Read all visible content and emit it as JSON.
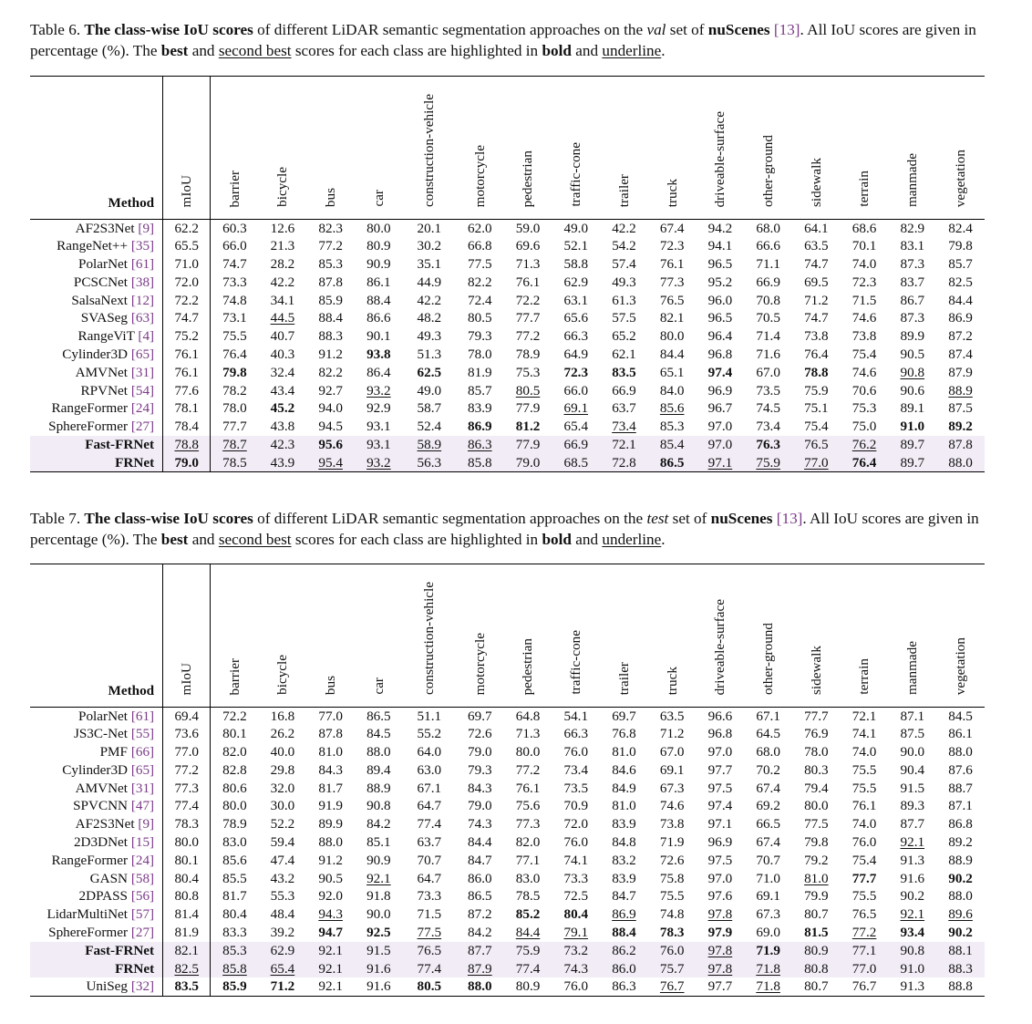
{
  "table6": {
    "caption": {
      "label": "Table 6.",
      "bold": "The class-wise IoU scores",
      "pre_set": "of different LiDAR semantic segmentation approaches on the",
      "set": "val",
      "mid": "set of",
      "dataset": "nuScenes",
      "ref": "[13]",
      "rest": ". All IoU scores are given in percentage (%). The",
      "best": "best",
      "and1": "and",
      "second": "second best",
      "scores_text": "scores for each class are highlighted in",
      "bold_word": "bold",
      "and2": "and",
      "underline_word": "underline",
      "end": "."
    },
    "header": [
      "Method",
      "mIoU",
      "barrier",
      "bicycle",
      "bus",
      "car",
      "construction-vehicle",
      "motorcycle",
      "pedestrian",
      "traffic-cone",
      "trailer",
      "truck",
      "driveable-surface",
      "other-ground",
      "sidewalk",
      "terrain",
      "manmade",
      "vegetation"
    ],
    "rows": [
      {
        "method": "AF2S3Net",
        "ref": "[9]",
        "values": [
          "62.2",
          "60.3",
          "12.6",
          "82.3",
          "80.0",
          "20.1",
          "62.0",
          "59.0",
          "49.0",
          "42.2",
          "67.4",
          "94.2",
          "68.0",
          "64.1",
          "68.6",
          "82.9",
          "82.4"
        ],
        "bold": [],
        "underline": []
      },
      {
        "method": "RangeNet++",
        "ref": "[35]",
        "values": [
          "65.5",
          "66.0",
          "21.3",
          "77.2",
          "80.9",
          "30.2",
          "66.8",
          "69.6",
          "52.1",
          "54.2",
          "72.3",
          "94.1",
          "66.6",
          "63.5",
          "70.1",
          "83.1",
          "79.8"
        ],
        "bold": [],
        "underline": []
      },
      {
        "method": "PolarNet",
        "ref": "[61]",
        "values": [
          "71.0",
          "74.7",
          "28.2",
          "85.3",
          "90.9",
          "35.1",
          "77.5",
          "71.3",
          "58.8",
          "57.4",
          "76.1",
          "96.5",
          "71.1",
          "74.7",
          "74.0",
          "87.3",
          "85.7"
        ],
        "bold": [],
        "underline": []
      },
      {
        "method": "PCSCNet",
        "ref": "[38]",
        "values": [
          "72.0",
          "73.3",
          "42.2",
          "87.8",
          "86.1",
          "44.9",
          "82.2",
          "76.1",
          "62.9",
          "49.3",
          "77.3",
          "95.2",
          "66.9",
          "69.5",
          "72.3",
          "83.7",
          "82.5"
        ],
        "bold": [],
        "underline": []
      },
      {
        "method": "SalsaNext",
        "ref": "[12]",
        "values": [
          "72.2",
          "74.8",
          "34.1",
          "85.9",
          "88.4",
          "42.2",
          "72.4",
          "72.2",
          "63.1",
          "61.3",
          "76.5",
          "96.0",
          "70.8",
          "71.2",
          "71.5",
          "86.7",
          "84.4"
        ],
        "bold": [],
        "underline": []
      },
      {
        "method": "SVASeg",
        "ref": "[63]",
        "values": [
          "74.7",
          "73.1",
          "44.5",
          "88.4",
          "86.6",
          "48.2",
          "80.5",
          "77.7",
          "65.6",
          "57.5",
          "82.1",
          "96.5",
          "70.5",
          "74.7",
          "74.6",
          "87.3",
          "86.9"
        ],
        "bold": [],
        "underline": [
          2
        ]
      },
      {
        "method": "RangeViT",
        "ref": "[4]",
        "values": [
          "75.2",
          "75.5",
          "40.7",
          "88.3",
          "90.1",
          "49.3",
          "79.3",
          "77.2",
          "66.3",
          "65.2",
          "80.0",
          "96.4",
          "71.4",
          "73.8",
          "73.8",
          "89.9",
          "87.2"
        ],
        "bold": [],
        "underline": []
      },
      {
        "method": "Cylinder3D",
        "ref": "[65]",
        "values": [
          "76.1",
          "76.4",
          "40.3",
          "91.2",
          "93.8",
          "51.3",
          "78.0",
          "78.9",
          "64.9",
          "62.1",
          "84.4",
          "96.8",
          "71.6",
          "76.4",
          "75.4",
          "90.5",
          "87.4"
        ],
        "bold": [
          4
        ],
        "underline": []
      },
      {
        "method": "AMVNet",
        "ref": "[31]",
        "values": [
          "76.1",
          "79.8",
          "32.4",
          "82.2",
          "86.4",
          "62.5",
          "81.9",
          "75.3",
          "72.3",
          "83.5",
          "65.1",
          "97.4",
          "67.0",
          "78.8",
          "74.6",
          "90.8",
          "87.9"
        ],
        "bold": [
          1,
          5,
          8,
          9,
          11,
          13
        ],
        "underline": [
          15
        ]
      },
      {
        "method": "RPVNet",
        "ref": "[54]",
        "values": [
          "77.6",
          "78.2",
          "43.4",
          "92.7",
          "93.2",
          "49.0",
          "85.7",
          "80.5",
          "66.0",
          "66.9",
          "84.0",
          "96.9",
          "73.5",
          "75.9",
          "70.6",
          "90.6",
          "88.9"
        ],
        "bold": [],
        "underline": [
          4,
          7,
          16
        ]
      },
      {
        "method": "RangeFormer",
        "ref": "[24]",
        "values": [
          "78.1",
          "78.0",
          "45.2",
          "94.0",
          "92.9",
          "58.7",
          "83.9",
          "77.9",
          "69.1",
          "63.7",
          "85.6",
          "96.7",
          "74.5",
          "75.1",
          "75.3",
          "89.1",
          "87.5"
        ],
        "bold": [
          2
        ],
        "underline": [
          8,
          10
        ]
      },
      {
        "method": "SphereFormer",
        "ref": "[27]",
        "values": [
          "78.4",
          "77.7",
          "43.8",
          "94.5",
          "93.1",
          "52.4",
          "86.9",
          "81.2",
          "65.4",
          "73.4",
          "85.3",
          "97.0",
          "73.4",
          "75.4",
          "75.0",
          "91.0",
          "89.2"
        ],
        "bold": [
          6,
          7,
          15,
          16
        ],
        "underline": [
          9
        ]
      },
      {
        "method": "Fast-FRNet",
        "ref": "",
        "ours": true,
        "values": [
          "78.8",
          "78.7",
          "42.3",
          "95.6",
          "93.1",
          "58.9",
          "86.3",
          "77.9",
          "66.9",
          "72.1",
          "85.4",
          "97.0",
          "76.3",
          "76.5",
          "76.2",
          "89.7",
          "87.8"
        ],
        "bold": [
          3,
          12
        ],
        "underline": [
          0,
          1,
          5,
          6,
          14
        ]
      },
      {
        "method": "FRNet",
        "ref": "",
        "ours": true,
        "values": [
          "79.0",
          "78.5",
          "43.9",
          "95.4",
          "93.2",
          "56.3",
          "85.8",
          "79.0",
          "68.5",
          "72.8",
          "86.5",
          "97.1",
          "75.9",
          "77.0",
          "76.4",
          "89.7",
          "88.0"
        ],
        "bold": [
          0,
          10,
          14
        ],
        "underline": [
          3,
          4,
          11,
          12,
          13
        ]
      }
    ]
  },
  "table7": {
    "caption": {
      "label": "Table 7.",
      "bold": "The class-wise IoU scores",
      "pre_set": "of different LiDAR semantic segmentation approaches on the",
      "set": "test",
      "mid": "set of",
      "dataset": "nuScenes",
      "ref": "[13]",
      "rest": ". All IoU scores are given in percentage (%). The",
      "best": "best",
      "and1": "and",
      "second": "second best",
      "scores_text": "scores for each class are highlighted in",
      "bold_word": "bold",
      "and2": "and",
      "underline_word": "underline",
      "end": "."
    },
    "header": [
      "Method",
      "mIoU",
      "barrier",
      "bicycle",
      "bus",
      "car",
      "construction-vehicle",
      "motorcycle",
      "pedestrian",
      "traffic-cone",
      "trailer",
      "truck",
      "driveable-surface",
      "other-ground",
      "sidewalk",
      "terrain",
      "manmade",
      "vegetation"
    ],
    "rows": [
      {
        "method": "PolarNet",
        "ref": "[61]",
        "values": [
          "69.4",
          "72.2",
          "16.8",
          "77.0",
          "86.5",
          "51.1",
          "69.7",
          "64.8",
          "54.1",
          "69.7",
          "63.5",
          "96.6",
          "67.1",
          "77.7",
          "72.1",
          "87.1",
          "84.5"
        ],
        "bold": [],
        "underline": []
      },
      {
        "method": "JS3C-Net",
        "ref": "[55]",
        "values": [
          "73.6",
          "80.1",
          "26.2",
          "87.8",
          "84.5",
          "55.2",
          "72.6",
          "71.3",
          "66.3",
          "76.8",
          "71.2",
          "96.8",
          "64.5",
          "76.9",
          "74.1",
          "87.5",
          "86.1"
        ],
        "bold": [],
        "underline": []
      },
      {
        "method": "PMF",
        "ref": "[66]",
        "values": [
          "77.0",
          "82.0",
          "40.0",
          "81.0",
          "88.0",
          "64.0",
          "79.0",
          "80.0",
          "76.0",
          "81.0",
          "67.0",
          "97.0",
          "68.0",
          "78.0",
          "74.0",
          "90.0",
          "88.0"
        ],
        "bold": [],
        "underline": []
      },
      {
        "method": "Cylinder3D",
        "ref": "[65]",
        "values": [
          "77.2",
          "82.8",
          "29.8",
          "84.3",
          "89.4",
          "63.0",
          "79.3",
          "77.2",
          "73.4",
          "84.6",
          "69.1",
          "97.7",
          "70.2",
          "80.3",
          "75.5",
          "90.4",
          "87.6"
        ],
        "bold": [],
        "underline": []
      },
      {
        "method": "AMVNet",
        "ref": "[31]",
        "values": [
          "77.3",
          "80.6",
          "32.0",
          "81.7",
          "88.9",
          "67.1",
          "84.3",
          "76.1",
          "73.5",
          "84.9",
          "67.3",
          "97.5",
          "67.4",
          "79.4",
          "75.5",
          "91.5",
          "88.7"
        ],
        "bold": [],
        "underline": []
      },
      {
        "method": "SPVCNN",
        "ref": "[47]",
        "values": [
          "77.4",
          "80.0",
          "30.0",
          "91.9",
          "90.8",
          "64.7",
          "79.0",
          "75.6",
          "70.9",
          "81.0",
          "74.6",
          "97.4",
          "69.2",
          "80.0",
          "76.1",
          "89.3",
          "87.1"
        ],
        "bold": [],
        "underline": []
      },
      {
        "method": "AF2S3Net",
        "ref": "[9]",
        "values": [
          "78.3",
          "78.9",
          "52.2",
          "89.9",
          "84.2",
          "77.4",
          "74.3",
          "77.3",
          "72.0",
          "83.9",
          "73.8",
          "97.1",
          "66.5",
          "77.5",
          "74.0",
          "87.7",
          "86.8"
        ],
        "bold": [],
        "underline": []
      },
      {
        "method": "2D3DNet",
        "ref": "[15]",
        "values": [
          "80.0",
          "83.0",
          "59.4",
          "88.0",
          "85.1",
          "63.7",
          "84.4",
          "82.0",
          "76.0",
          "84.8",
          "71.9",
          "96.9",
          "67.4",
          "79.8",
          "76.0",
          "92.1",
          "89.2"
        ],
        "bold": [],
        "underline": [
          15
        ]
      },
      {
        "method": "RangeFormer",
        "ref": "[24]",
        "values": [
          "80.1",
          "85.6",
          "47.4",
          "91.2",
          "90.9",
          "70.7",
          "84.7",
          "77.1",
          "74.1",
          "83.2",
          "72.6",
          "97.5",
          "70.7",
          "79.2",
          "75.4",
          "91.3",
          "88.9"
        ],
        "bold": [],
        "underline": []
      },
      {
        "method": "GASN",
        "ref": "[58]",
        "values": [
          "80.4",
          "85.5",
          "43.2",
          "90.5",
          "92.1",
          "64.7",
          "86.0",
          "83.0",
          "73.3",
          "83.9",
          "75.8",
          "97.0",
          "71.0",
          "81.0",
          "77.7",
          "91.6",
          "90.2"
        ],
        "bold": [
          14,
          16
        ],
        "underline": [
          4,
          13
        ]
      },
      {
        "method": "2DPASS",
        "ref": "[56]",
        "values": [
          "80.8",
          "81.7",
          "55.3",
          "92.0",
          "91.8",
          "73.3",
          "86.5",
          "78.5",
          "72.5",
          "84.7",
          "75.5",
          "97.6",
          "69.1",
          "79.9",
          "75.5",
          "90.2",
          "88.0"
        ],
        "bold": [],
        "underline": []
      },
      {
        "method": "LidarMultiNet",
        "ref": "[57]",
        "values": [
          "81.4",
          "80.4",
          "48.4",
          "94.3",
          "90.0",
          "71.5",
          "87.2",
          "85.2",
          "80.4",
          "86.9",
          "74.8",
          "97.8",
          "67.3",
          "80.7",
          "76.5",
          "92.1",
          "89.6"
        ],
        "bold": [
          7,
          8
        ],
        "underline": [
          3,
          9,
          11,
          15,
          16
        ]
      },
      {
        "method": "SphereFormer",
        "ref": "[27]",
        "values": [
          "81.9",
          "83.3",
          "39.2",
          "94.7",
          "92.5",
          "77.5",
          "84.2",
          "84.4",
          "79.1",
          "88.4",
          "78.3",
          "97.9",
          "69.0",
          "81.5",
          "77.2",
          "93.4",
          "90.2"
        ],
        "bold": [
          3,
          4,
          9,
          10,
          11,
          13,
          15,
          16
        ],
        "underline": [
          5,
          7,
          8,
          14
        ]
      },
      {
        "method": "Fast-FRNet",
        "ref": "",
        "ours": true,
        "values": [
          "82.1",
          "85.3",
          "62.9",
          "92.1",
          "91.5",
          "76.5",
          "87.7",
          "75.9",
          "73.2",
          "86.2",
          "76.0",
          "97.8",
          "71.9",
          "80.9",
          "77.1",
          "90.8",
          "88.1"
        ],
        "bold": [
          12
        ],
        "underline": [
          11
        ]
      },
      {
        "method": "FRNet",
        "ref": "",
        "ours": true,
        "values": [
          "82.5",
          "85.8",
          "65.4",
          "92.1",
          "91.6",
          "77.4",
          "87.9",
          "77.4",
          "74.3",
          "86.0",
          "75.7",
          "97.8",
          "71.8",
          "80.8",
          "77.0",
          "91.0",
          "88.3"
        ],
        "bold": [],
        "underline": [
          0,
          1,
          2,
          6,
          11,
          12
        ]
      },
      {
        "method": "UniSeg",
        "ref": "[32]",
        "values": [
          "83.5",
          "85.9",
          "71.2",
          "92.1",
          "91.6",
          "80.5",
          "88.0",
          "80.9",
          "76.0",
          "86.3",
          "76.7",
          "97.7",
          "71.8",
          "80.7",
          "76.7",
          "91.3",
          "88.8"
        ],
        "bold": [
          0,
          1,
          2,
          5,
          6
        ],
        "underline": [
          10,
          12
        ]
      }
    ]
  }
}
